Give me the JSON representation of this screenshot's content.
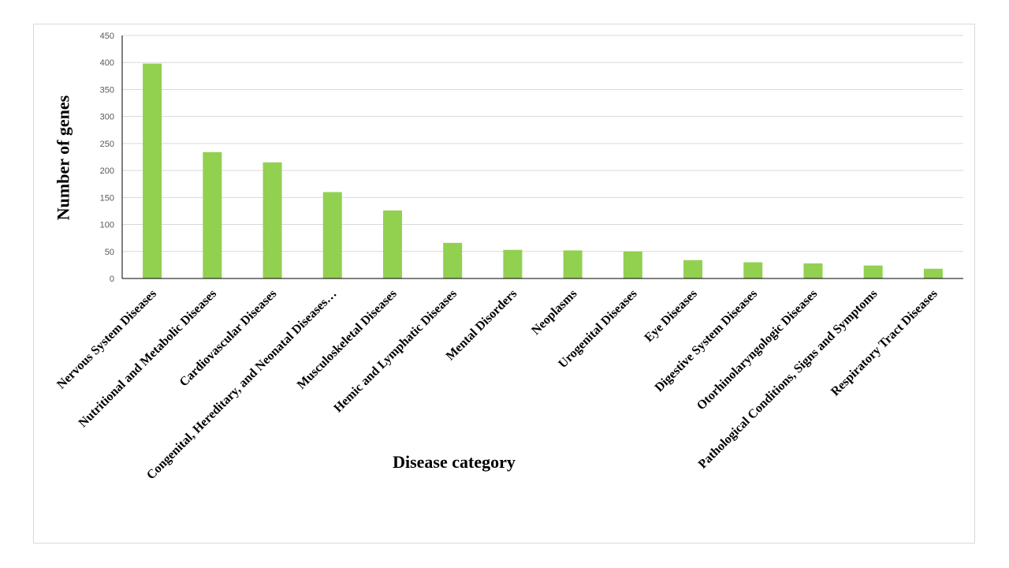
{
  "chart_data": {
    "type": "bar",
    "title": "",
    "xlabel": "Disease category",
    "ylabel": "Number of genes",
    "ylim": [
      0,
      450
    ],
    "yticks": [
      0,
      50,
      100,
      150,
      200,
      250,
      300,
      350,
      400,
      450
    ],
    "grid": true,
    "legend": "none",
    "bar_color": "#92d050",
    "categories": [
      "Nervous System Diseases",
      "Nutritional and Metabolic Diseases",
      "Cardiovascular Diseases",
      "Congenital, Hereditary, and Neonatal Diseases…",
      "Musculoskeletal Diseases",
      "Hemic and Lymphatic Diseases",
      "Mental Disorders",
      "Neoplasms",
      "Urogenital Diseases",
      "Eye Diseases",
      "Digestive System Diseases",
      "Otorhinolaryngologic Diseases",
      "Pathological Conditions, Signs and Symptoms",
      "Respiratory Tract Diseases"
    ],
    "values": [
      398,
      234,
      215,
      160,
      126,
      66,
      53,
      52,
      50,
      34,
      30,
      28,
      24,
      18
    ]
  }
}
